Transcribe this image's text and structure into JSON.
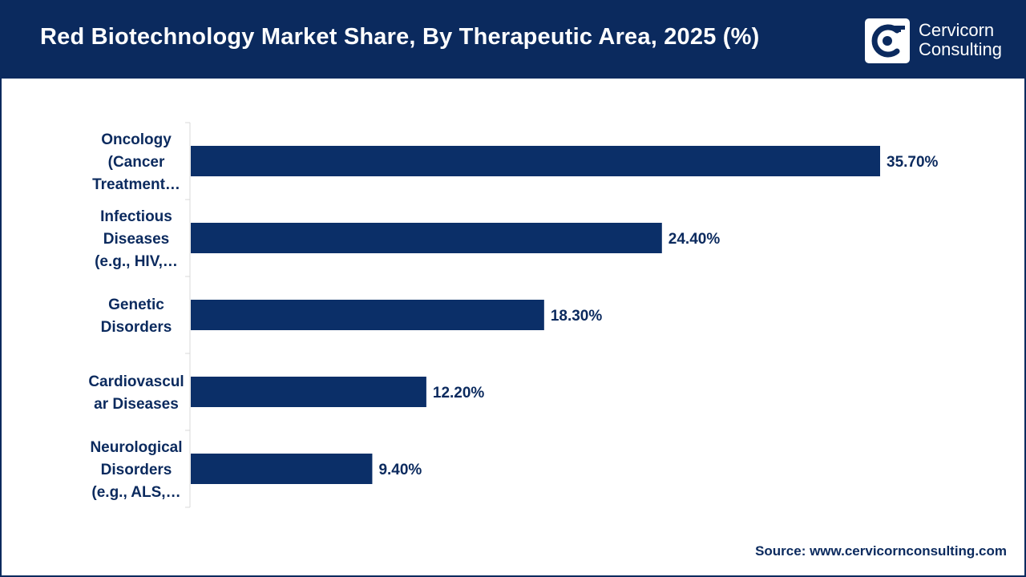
{
  "header": {
    "title": "Red Biotechnology Market Share, By Therapeutic Area, 2025 (%)",
    "brand_line1": "Cervicorn",
    "brand_line2": "Consulting"
  },
  "colors": {
    "navy": "#0b2a5e",
    "bar": "#0b2f68",
    "axis": "#d9d9d9"
  },
  "logo_icon": "cervicorn-c-logo-icon",
  "chart_data": {
    "type": "bar",
    "orientation": "horizontal",
    "categories": [
      [
        "Oncology",
        "(Cancer",
        "Treatment…"
      ],
      [
        "Infectious",
        "Diseases",
        "(e.g., HIV,…"
      ],
      [
        "Genetic",
        "Disorders"
      ],
      [
        "Cardiovascul",
        "ar Diseases"
      ],
      [
        "Neurological",
        "Disorders",
        "(e.g., ALS,…"
      ]
    ],
    "values": [
      35.7,
      24.4,
      18.3,
      12.2,
      9.4
    ],
    "data_labels": [
      "35.70%",
      "24.40%",
      "18.30%",
      "12.20%",
      "9.40%"
    ],
    "xlim": [
      0,
      40
    ],
    "grid": false,
    "legend": "none"
  },
  "source": "Source: www.cervicornconsulting.com"
}
